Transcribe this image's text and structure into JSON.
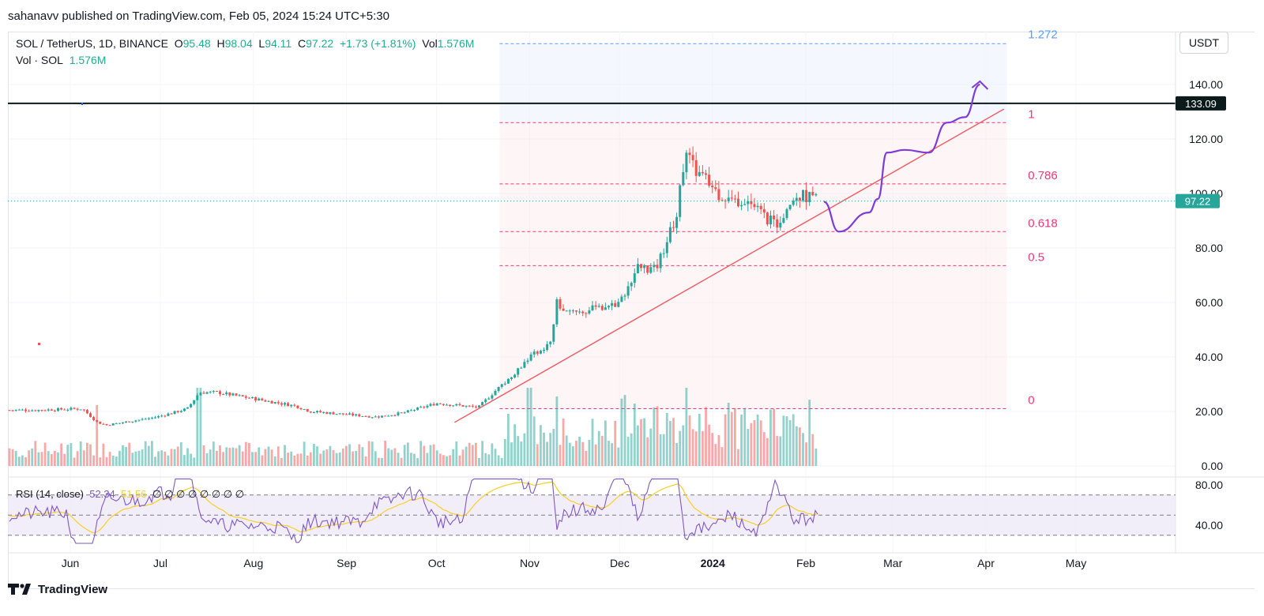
{
  "header": {
    "publish_text": "sahanavv published on TradingView.com, Feb 05, 2024 15:24 UTC+5:30"
  },
  "legend": {
    "symbol": "SOL / TetherUS, 1D, BINANCE",
    "o_label": "O",
    "o_value": "95.48",
    "h_label": "H",
    "h_value": "98.04",
    "l_label": "L",
    "l_value": "94.11",
    "c_label": "C",
    "c_value": "97.22",
    "change": "+1.73 (+1.81%)",
    "vol_label": "Vol",
    "vol_value": "1.576M",
    "vol_row_label": "Vol · SOL",
    "vol_row_value": "1.576M"
  },
  "currency_button": "USDT",
  "rsi_legend": {
    "label": "RSI (14, close)",
    "value": "52.34",
    "ma": "51.56",
    "na": "∅ ∅ ∅ ∅ ∅ ∅ ∅ ∅"
  },
  "footer": {
    "brand": "TradingView"
  },
  "colors": {
    "up": "#26a69a",
    "down": "#ef5350",
    "fib": "#f23675",
    "fib_top": "#5b9cf6",
    "trendline": "#f0585f",
    "projection": "#7e3bd8",
    "rsi": "#7e57c2",
    "rsi_ma": "#f7cf2a"
  },
  "chart_data": {
    "type": "candlestick",
    "symbol": "SOL / TetherUS",
    "interval": "1D",
    "exchange": "BINANCE",
    "x_months": [
      "Jun",
      "Jul",
      "Aug",
      "Sep",
      "Oct",
      "Nov",
      "Dec",
      "2024",
      "Feb",
      "Mar",
      "Apr",
      "May"
    ],
    "y_ticks": [
      "140.00",
      "120.00",
      "100.00",
      "80.00",
      "60.00",
      "40.00",
      "20.00",
      "0.00"
    ],
    "ylim": [
      0,
      160
    ],
    "current_price": "97.22",
    "horizontal_level": "133.09",
    "close_path": [
      {
        "date": "2023-05-20",
        "close": 20.5
      },
      {
        "date": "2023-06-05",
        "close": 21
      },
      {
        "date": "2023-06-10",
        "close": 16
      },
      {
        "date": "2023-06-13",
        "close": 15
      },
      {
        "date": "2023-06-30",
        "close": 18
      },
      {
        "date": "2023-07-10",
        "close": 21
      },
      {
        "date": "2023-07-14",
        "close": 27
      },
      {
        "date": "2023-07-20",
        "close": 27
      },
      {
        "date": "2023-08-15",
        "close": 22
      },
      {
        "date": "2023-08-20",
        "close": 20
      },
      {
        "date": "2023-09-11",
        "close": 18
      },
      {
        "date": "2023-09-20",
        "close": 19.5
      },
      {
        "date": "2023-10-01",
        "close": 23
      },
      {
        "date": "2023-10-15",
        "close": 21.5
      },
      {
        "date": "2023-10-20",
        "close": 27
      },
      {
        "date": "2023-10-25",
        "close": 32
      },
      {
        "date": "2023-11-01",
        "close": 40
      },
      {
        "date": "2023-11-08",
        "close": 45
      },
      {
        "date": "2023-11-10",
        "close": 60
      },
      {
        "date": "2023-11-13",
        "close": 56
      },
      {
        "date": "2023-11-20",
        "close": 57
      },
      {
        "date": "2023-12-01",
        "close": 60
      },
      {
        "date": "2023-12-07",
        "close": 73
      },
      {
        "date": "2023-12-13",
        "close": 72
      },
      {
        "date": "2023-12-20",
        "close": 92
      },
      {
        "date": "2023-12-23",
        "close": 117
      },
      {
        "date": "2023-12-25",
        "close": 110
      },
      {
        "date": "2024-01-03",
        "close": 100
      },
      {
        "date": "2024-01-08",
        "close": 97
      },
      {
        "date": "2024-01-12",
        "close": 98
      },
      {
        "date": "2024-01-22",
        "close": 88
      },
      {
        "date": "2024-01-28",
        "close": 100
      },
      {
        "date": "2024-02-05",
        "close": 97.22
      }
    ],
    "fibonacci_levels": [
      {
        "label": "1.272",
        "price": 155
      },
      {
        "label": "1",
        "price": 126
      },
      {
        "label": "0.786",
        "price": 103.5
      },
      {
        "label": "0.618",
        "price": 86
      },
      {
        "label": "0.5",
        "price": 73.5
      },
      {
        "label": "0",
        "price": 21
      }
    ],
    "trendline": [
      {
        "date": "2023-10-07",
        "price": 16
      },
      {
        "date": "2024-04-07",
        "price": 131
      }
    ],
    "projection_path": [
      {
        "date": "2024-02-07",
        "price": 97
      },
      {
        "date": "2024-02-12",
        "price": 86
      },
      {
        "date": "2024-02-22",
        "price": 93
      },
      {
        "date": "2024-02-25",
        "price": 98
      },
      {
        "date": "2024-02-28",
        "price": 115
      },
      {
        "date": "2024-03-05",
        "price": 116
      },
      {
        "date": "2024-03-13",
        "price": 115
      },
      {
        "date": "2024-03-19",
        "price": 126
      },
      {
        "date": "2024-03-25",
        "price": 128
      },
      {
        "date": "2024-03-30",
        "price": 140
      }
    ],
    "volume_bars": [
      {
        "date": "2023-06-10",
        "value": 0.35
      },
      {
        "date": "2023-07-14",
        "value": 0.45
      },
      {
        "date": "2023-10-25",
        "value": 0.3
      },
      {
        "date": "2023-11-01",
        "value": 0.45
      },
      {
        "date": "2023-11-10",
        "value": 0.4
      },
      {
        "date": "2023-12-23",
        "value": 0.45
      },
      {
        "date": "2024-02-05",
        "value": 0.1
      }
    ],
    "rsi": {
      "period": 14,
      "value": 52.34,
      "ma_value": 51.56,
      "levels": [
        70,
        50,
        30
      ],
      "y_ticks": [
        "80.00",
        "40.00"
      ]
    }
  }
}
